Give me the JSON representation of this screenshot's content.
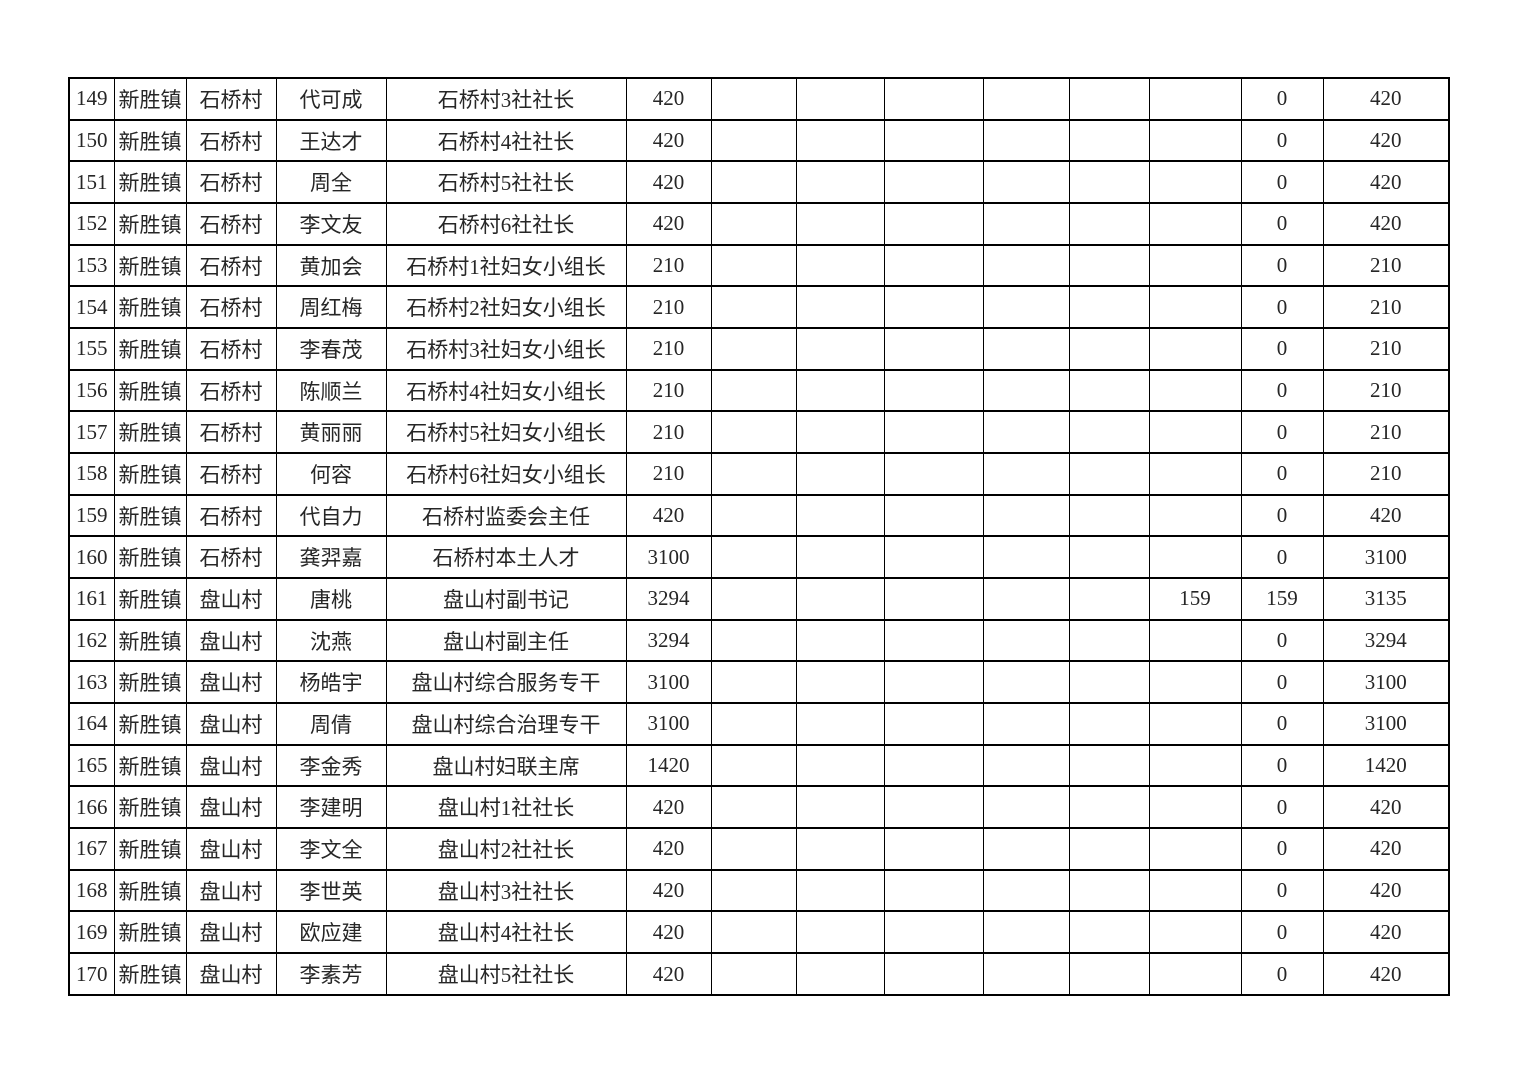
{
  "document": {
    "background_color": "#ffffff",
    "grid_color": "#000000",
    "text_color": "#262626"
  },
  "table": {
    "row_count": 22,
    "column_count": 14,
    "rows": [
      [
        "149",
        "新胜镇",
        "石桥村",
        "代可成",
        "石桥村3社社长",
        "420",
        "",
        "",
        "",
        "",
        "",
        "",
        "0",
        "420"
      ],
      [
        "150",
        "新胜镇",
        "石桥村",
        "王达才",
        "石桥村4社社长",
        "420",
        "",
        "",
        "",
        "",
        "",
        "",
        "0",
        "420"
      ],
      [
        "151",
        "新胜镇",
        "石桥村",
        "周全",
        "石桥村5社社长",
        "420",
        "",
        "",
        "",
        "",
        "",
        "",
        "0",
        "420"
      ],
      [
        "152",
        "新胜镇",
        "石桥村",
        "李文友",
        "石桥村6社社长",
        "420",
        "",
        "",
        "",
        "",
        "",
        "",
        "0",
        "420"
      ],
      [
        "153",
        "新胜镇",
        "石桥村",
        "黄加会",
        "石桥村1社妇女小组长",
        "210",
        "",
        "",
        "",
        "",
        "",
        "",
        "0",
        "210"
      ],
      [
        "154",
        "新胜镇",
        "石桥村",
        "周红梅",
        "石桥村2社妇女小组长",
        "210",
        "",
        "",
        "",
        "",
        "",
        "",
        "0",
        "210"
      ],
      [
        "155",
        "新胜镇",
        "石桥村",
        "李春茂",
        "石桥村3社妇女小组长",
        "210",
        "",
        "",
        "",
        "",
        "",
        "",
        "0",
        "210"
      ],
      [
        "156",
        "新胜镇",
        "石桥村",
        "陈顺兰",
        "石桥村4社妇女小组长",
        "210",
        "",
        "",
        "",
        "",
        "",
        "",
        "0",
        "210"
      ],
      [
        "157",
        "新胜镇",
        "石桥村",
        "黄丽丽",
        "石桥村5社妇女小组长",
        "210",
        "",
        "",
        "",
        "",
        "",
        "",
        "0",
        "210"
      ],
      [
        "158",
        "新胜镇",
        "石桥村",
        "何容",
        "石桥村6社妇女小组长",
        "210",
        "",
        "",
        "",
        "",
        "",
        "",
        "0",
        "210"
      ],
      [
        "159",
        "新胜镇",
        "石桥村",
        "代自力",
        "石桥村监委会主任",
        "420",
        "",
        "",
        "",
        "",
        "",
        "",
        "0",
        "420"
      ],
      [
        "160",
        "新胜镇",
        "石桥村",
        "龚羿嘉",
        "石桥村本土人才",
        "3100",
        "",
        "",
        "",
        "",
        "",
        "",
        "0",
        "3100"
      ],
      [
        "161",
        "新胜镇",
        "盘山村",
        "唐桃",
        "盘山村副书记",
        "3294",
        "",
        "",
        "",
        "",
        "",
        "159",
        "159",
        "3135"
      ],
      [
        "162",
        "新胜镇",
        "盘山村",
        "沈燕",
        "盘山村副主任",
        "3294",
        "",
        "",
        "",
        "",
        "",
        "",
        "0",
        "3294"
      ],
      [
        "163",
        "新胜镇",
        "盘山村",
        "杨皓宇",
        "盘山村综合服务专干",
        "3100",
        "",
        "",
        "",
        "",
        "",
        "",
        "0",
        "3100"
      ],
      [
        "164",
        "新胜镇",
        "盘山村",
        "周倩",
        "盘山村综合治理专干",
        "3100",
        "",
        "",
        "",
        "",
        "",
        "",
        "0",
        "3100"
      ],
      [
        "165",
        "新胜镇",
        "盘山村",
        "李金秀",
        "盘山村妇联主席",
        "1420",
        "",
        "",
        "",
        "",
        "",
        "",
        "0",
        "1420"
      ],
      [
        "166",
        "新胜镇",
        "盘山村",
        "李建明",
        "盘山村1社社长",
        "420",
        "",
        "",
        "",
        "",
        "",
        "",
        "0",
        "420"
      ],
      [
        "167",
        "新胜镇",
        "盘山村",
        "李文全",
        "盘山村2社社长",
        "420",
        "",
        "",
        "",
        "",
        "",
        "",
        "0",
        "420"
      ],
      [
        "168",
        "新胜镇",
        "盘山村",
        "李世英",
        "盘山村3社社长",
        "420",
        "",
        "",
        "",
        "",
        "",
        "",
        "0",
        "420"
      ],
      [
        "169",
        "新胜镇",
        "盘山村",
        "欧应建",
        "盘山村4社社长",
        "420",
        "",
        "",
        "",
        "",
        "",
        "",
        "0",
        "420"
      ],
      [
        "170",
        "新胜镇",
        "盘山村",
        "李素芳",
        "盘山村5社社长",
        "420",
        "",
        "",
        "",
        "",
        "",
        "",
        "0",
        "420"
      ]
    ]
  }
}
